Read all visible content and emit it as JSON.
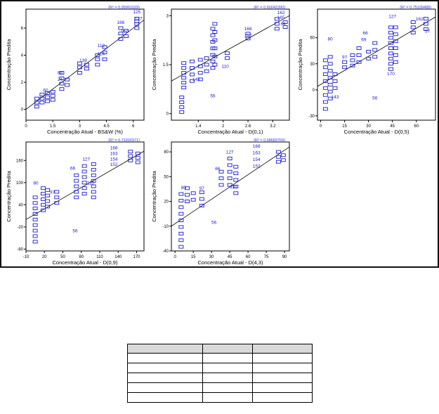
{
  "figure": {
    "ylabel": "Concentração Predita",
    "fit_color": "#000000",
    "point_color": "#1a1acc",
    "r2_color": "#3333ff"
  },
  "chart_data": [
    {
      "type": "scatter",
      "r2_text": "(R² = 0.95961029)",
      "xlabel": "Concentração Atual - BS&W (%)",
      "ylabel": "Concentração Predita",
      "xlim": [
        0,
        6.6
      ],
      "ylim": [
        -0.8,
        7.4
      ],
      "xticks": [
        0,
        1.5,
        3,
        4.5,
        6
      ],
      "xtick_labels": [
        "0",
        "1.5",
        "3",
        "4.5",
        "6"
      ],
      "yticks": [
        0,
        2,
        4,
        6
      ],
      "ytick_labels": [
        "0",
        "2",
        "4",
        "6"
      ],
      "fit": [
        [
          -0.5,
          -0.5
        ],
        [
          6.6,
          6.6
        ]
      ],
      "clusters": [
        {
          "x": 0.6,
          "y": [
            0.2,
            0.5,
            0.8
          ]
        },
        {
          "x": 0.9,
          "y": [
            0.5,
            0.8,
            1.1
          ]
        },
        {
          "x": 1.2,
          "y": [
            0.6,
            0.9,
            1.2
          ]
        },
        {
          "x": 1.5,
          "y": [
            0.7,
            1.0,
            1.3
          ]
        },
        {
          "x": 2.0,
          "y": [
            1.5,
            1.9,
            2.3,
            2.7
          ]
        },
        {
          "x": 2.3,
          "y": [
            1.8,
            2.2
          ]
        },
        {
          "x": 3.0,
          "y": [
            2.7,
            3.1,
            3.4
          ]
        },
        {
          "x": 3.4,
          "y": [
            3.0,
            3.3
          ]
        },
        {
          "x": 4.0,
          "y": [
            3.3,
            3.7,
            4.0
          ]
        },
        {
          "x": 4.4,
          "y": [
            3.7,
            4.2,
            4.6
          ]
        },
        {
          "x": 5.3,
          "y": [
            5.2,
            5.6,
            6.0
          ]
        },
        {
          "x": 5.6,
          "y": [
            5.4,
            5.8
          ]
        },
        {
          "x": 6.2,
          "y": [
            6.0,
            6.3,
            6.5,
            6.7
          ]
        }
      ],
      "labels": [
        {
          "x": 6.2,
          "y": 7.1,
          "text": "125"
        },
        {
          "x": 6.3,
          "y": 6.6,
          "text": "127"
        },
        {
          "x": 5.3,
          "y": 6.3,
          "text": "166"
        },
        {
          "x": 5.5,
          "y": 5.7,
          "text": "167"
        },
        {
          "x": 4.2,
          "y": 4.6,
          "text": "112"
        },
        {
          "x": 4.2,
          "y": 4.0,
          "text": "114"
        },
        {
          "x": 3.2,
          "y": 3.5,
          "text": "138"
        },
        {
          "x": 1.9,
          "y": 2.6,
          "text": "88"
        },
        {
          "x": 1.9,
          "y": 2.1,
          "text": "24"
        },
        {
          "x": 1.1,
          "y": 1.3,
          "text": "60"
        }
      ]
    },
    {
      "type": "scatter",
      "r2_text": "(R² = 0.60042390)",
      "xlabel": "Concentração Atual - D(0,1)",
      "ylabel": "Concentração Predita",
      "xlim": [
        0.75,
        3.6
      ],
      "ylim": [
        -0.2,
        3.2
      ],
      "xticks": [
        1.4,
        2,
        2.6,
        3.2
      ],
      "xtick_labels": [
        "1.4",
        "2",
        "2.6",
        "3.2"
      ],
      "yticks": [
        0,
        1.5,
        3
      ],
      "ytick_labels": [
        "0",
        "1.5",
        "3"
      ],
      "fit": [
        [
          0.75,
          1.0
        ],
        [
          3.6,
          3.0
        ]
      ],
      "clusters": [
        {
          "x": 1.0,
          "y": [
            0.05,
            0.2,
            0.35,
            0.5
          ]
        },
        {
          "x": 1.05,
          "y": [
            0.8,
            0.95,
            1.1,
            1.25,
            1.4,
            1.55
          ]
        },
        {
          "x": 1.25,
          "y": [
            1.0,
            1.2,
            1.4,
            1.6
          ]
        },
        {
          "x": 1.45,
          "y": [
            1.05,
            1.25,
            1.45,
            1.65
          ]
        },
        {
          "x": 1.6,
          "y": [
            1.3,
            1.5,
            1.7
          ]
        },
        {
          "x": 1.75,
          "y": [
            1.4,
            1.6,
            1.8,
            2.0,
            2.2,
            2.4,
            2.6
          ]
        },
        {
          "x": 1.8,
          "y": [
            1.5,
            1.75,
            2.0,
            2.25,
            2.5,
            2.75
          ]
        },
        {
          "x": 2.1,
          "y": [
            1.7,
            1.85
          ]
        },
        {
          "x": 2.6,
          "y": [
            2.3,
            2.45
          ]
        },
        {
          "x": 3.3,
          "y": [
            2.6,
            2.75,
            2.9
          ]
        },
        {
          "x": 3.5,
          "y": [
            2.65,
            2.8
          ]
        }
      ],
      "labels": [
        {
          "x": 3.4,
          "y": 3.05,
          "text": "162"
        },
        {
          "x": 3.4,
          "y": 2.9,
          "text": "165"
        },
        {
          "x": 3.45,
          "y": 2.7,
          "text": "64"
        },
        {
          "x": 2.6,
          "y": 2.55,
          "text": "168"
        },
        {
          "x": 2.6,
          "y": 2.35,
          "text": "152"
        },
        {
          "x": 2.05,
          "y": 1.4,
          "text": "110"
        },
        {
          "x": 1.35,
          "y": 1.0,
          "text": "143"
        },
        {
          "x": 1.75,
          "y": 0.5,
          "text": "56"
        }
      ]
    },
    {
      "type": "scatter",
      "r2_text": "(R² = 0.75109488)",
      "xlabel": "Concentração Atual - D(0,5)",
      "ylabel": "Concentração Predita",
      "xlim": [
        -2,
        72
      ],
      "ylim": [
        -35,
        93
      ],
      "xticks": [
        0,
        15,
        30,
        45,
        60
      ],
      "xtick_labels": [
        "0",
        "15",
        "30",
        "45",
        "60"
      ],
      "yticks": [
        -30,
        0,
        30,
        60
      ],
      "ytick_labels": [
        "-30",
        "0",
        "30",
        "60"
      ],
      "fit": [
        [
          -2,
          4
        ],
        [
          72,
          84
        ]
      ],
      "clusters": [
        {
          "x": 3,
          "y": [
            -22,
            -14,
            -6,
            2,
            10,
            18,
            26,
            34
          ]
        },
        {
          "x": 6,
          "y": [
            -10,
            -2,
            6,
            14,
            22,
            30,
            38
          ]
        },
        {
          "x": 9,
          "y": [
            2,
            10,
            18
          ]
        },
        {
          "x": 15,
          "y": [
            26,
            32
          ]
        },
        {
          "x": 20,
          "y": [
            28,
            34,
            40
          ]
        },
        {
          "x": 24,
          "y": [
            32,
            40,
            48
          ]
        },
        {
          "x": 30,
          "y": [
            36,
            44
          ]
        },
        {
          "x": 34,
          "y": [
            38,
            46,
            54
          ]
        },
        {
          "x": 44,
          "y": [
            24,
            30,
            36,
            42,
            48,
            54,
            60,
            66,
            72
          ]
        },
        {
          "x": 47,
          "y": [
            32,
            40,
            48,
            56,
            64,
            72
          ]
        },
        {
          "x": 58,
          "y": [
            66,
            72,
            78
          ]
        },
        {
          "x": 66,
          "y": [
            70,
            76,
            82
          ]
        }
      ],
      "labels": [
        {
          "x": 6,
          "y": 57,
          "text": "80"
        },
        {
          "x": 45,
          "y": 83,
          "text": "127"
        },
        {
          "x": 62,
          "y": 80,
          "text": "162"
        },
        {
          "x": 28,
          "y": 64,
          "text": "66"
        },
        {
          "x": 27,
          "y": 56,
          "text": "69"
        },
        {
          "x": 67,
          "y": 66,
          "text": "57"
        },
        {
          "x": 15,
          "y": 36,
          "text": "97"
        },
        {
          "x": 44,
          "y": 17,
          "text": "170"
        },
        {
          "x": 9,
          "y": -10,
          "text": "143"
        },
        {
          "x": 34,
          "y": -11,
          "text": "56"
        }
      ]
    },
    {
      "type": "scatter",
      "r2_text": "(R² = 0.71916971)",
      "xlabel": "Concentração Atual - D(0,9)",
      "ylabel": "Concentração Predita",
      "xlim": [
        -10,
        182
      ],
      "ylim": [
        -85,
        210
      ],
      "xticks": [
        -10,
        20,
        50,
        80,
        110,
        140,
        170
      ],
      "xtick_labels": [
        "-10",
        "20",
        "50",
        "80",
        "110",
        "140",
        "170"
      ],
      "yticks": [
        -80,
        -20,
        40,
        100,
        160
      ],
      "ytick_labels": [
        "-80",
        "-20",
        "40",
        "100",
        "160"
      ],
      "fit": [
        [
          -10,
          0
        ],
        [
          182,
          185
        ]
      ],
      "clusters": [
        {
          "x": 5,
          "y": [
            -60,
            -45,
            -30,
            -15,
            0,
            15,
            30,
            45,
            60
          ]
        },
        {
          "x": 18,
          "y": [
            25,
            40,
            55,
            70,
            85
          ]
        },
        {
          "x": 25,
          "y": [
            35,
            50,
            65,
            80
          ]
        },
        {
          "x": 40,
          "y": [
            45,
            60,
            75
          ]
        },
        {
          "x": 72,
          "y": [
            60,
            75,
            90,
            105,
            120
          ]
        },
        {
          "x": 85,
          "y": [
            70,
            85,
            100,
            115,
            130,
            145
          ]
        },
        {
          "x": 100,
          "y": [
            60,
            75,
            90,
            105,
            120,
            135,
            150
          ]
        },
        {
          "x": 160,
          "y": [
            160,
            172,
            184
          ]
        },
        {
          "x": 172,
          "y": [
            155,
            167,
            179
          ]
        }
      ],
      "labels": [
        {
          "x": 6,
          "y": 95,
          "text": "80"
        },
        {
          "x": 88,
          "y": 160,
          "text": "127"
        },
        {
          "x": 133,
          "y": 190,
          "text": "168"
        },
        {
          "x": 133,
          "y": 175,
          "text": "163"
        },
        {
          "x": 133,
          "y": 160,
          "text": "154"
        },
        {
          "x": 133,
          "y": 145,
          "text": "152"
        },
        {
          "x": 66,
          "y": 135,
          "text": "66"
        },
        {
          "x": 95,
          "y": 95,
          "text": "110"
        },
        {
          "x": 33,
          "y": 70,
          "text": "97"
        },
        {
          "x": 70,
          "y": -35,
          "text": "56"
        }
      ]
    },
    {
      "type": "scatter",
      "r2_text": "(R² = 0.68683769)",
      "xlabel": "Concentração Atual - D(4,3)",
      "ylabel": "Concentração Predita",
      "xlim": [
        -3,
        94
      ],
      "ylim": [
        -40,
        92
      ],
      "xticks": [
        0,
        15,
        30,
        45,
        60,
        75,
        90
      ],
      "xtick_labels": [
        "0",
        "15",
        "30",
        "45",
        "60",
        "75",
        "90"
      ],
      "yticks": [
        -40,
        -10,
        20,
        50,
        80
      ],
      "ytick_labels": [
        "-40",
        "-10",
        "20",
        "50",
        "80"
      ],
      "fit": [
        [
          -3,
          -10
        ],
        [
          94,
          86
        ]
      ],
      "clusters": [
        {
          "x": 5,
          "y": [
            -35,
            -27,
            -19,
            -11,
            -3,
            5,
            13,
            21,
            29
          ]
        },
        {
          "x": 10,
          "y": [
            20,
            28,
            36
          ]
        },
        {
          "x": 15,
          "y": [
            22,
            30
          ]
        },
        {
          "x": 22,
          "y": [
            15,
            23,
            31
          ]
        },
        {
          "x": 38,
          "y": [
            40,
            48,
            56
          ]
        },
        {
          "x": 45,
          "y": [
            40,
            48,
            56,
            64,
            72
          ]
        },
        {
          "x": 50,
          "y": [
            30,
            38,
            46,
            54,
            62
          ]
        },
        {
          "x": 85,
          "y": [
            68,
            74,
            80
          ]
        },
        {
          "x": 89,
          "y": [
            70,
            76
          ]
        }
      ],
      "labels": [
        {
          "x": 7,
          "y": 35,
          "text": "80"
        },
        {
          "x": 45,
          "y": 78,
          "text": "127"
        },
        {
          "x": 67,
          "y": 85,
          "text": "168"
        },
        {
          "x": 67,
          "y": 77,
          "text": "163"
        },
        {
          "x": 67,
          "y": 69,
          "text": "154"
        },
        {
          "x": 67,
          "y": 61,
          "text": "152"
        },
        {
          "x": 35,
          "y": 58,
          "text": "66"
        },
        {
          "x": 48,
          "y": 36,
          "text": "110"
        },
        {
          "x": 22,
          "y": 34,
          "text": "97"
        },
        {
          "x": 32,
          "y": -7,
          "text": "56"
        }
      ]
    }
  ],
  "table": {
    "headers": [
      "",
      "",
      ""
    ],
    "rows": [
      [
        "",
        "",
        ""
      ],
      [
        "",
        "",
        ""
      ],
      [
        "",
        "",
        ""
      ],
      [
        "",
        "",
        ""
      ],
      [
        "",
        "",
        ""
      ]
    ]
  }
}
